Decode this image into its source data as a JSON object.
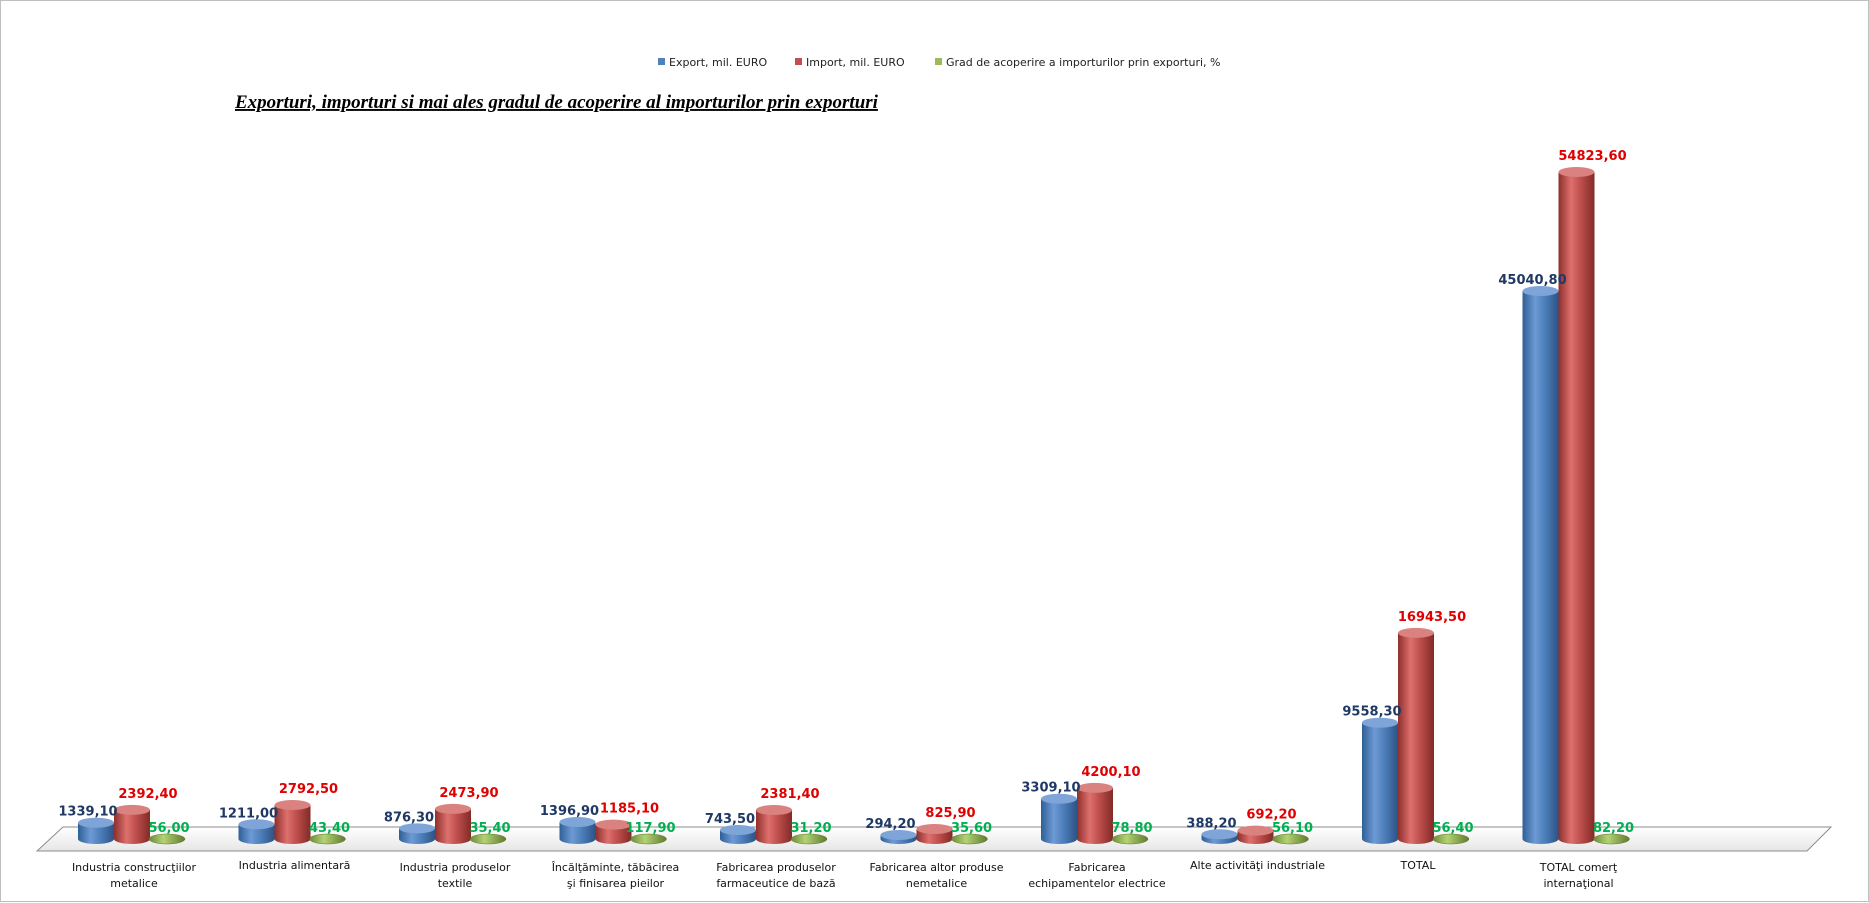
{
  "chart_data": {
    "type": "bar",
    "title": "Exporturi, importuri si mai ales gradul de acoperire al importurilor prin exporturi",
    "legend_position": "top",
    "categories": [
      [
        "Industria construcţiilor",
        "metalice"
      ],
      [
        "Industria alimentară"
      ],
      [
        "Industria produselor",
        "textile"
      ],
      [
        "Încălţăminte, tăbăcirea",
        "şi finisarea pieilor"
      ],
      [
        "Fabricarea produselor",
        "farmaceutice de bază"
      ],
      [
        "Fabricarea altor produse",
        "nemetalice"
      ],
      [
        "Fabricarea",
        "echipamentelor electrice"
      ],
      [
        "Alte activităţi industriale"
      ],
      [
        "TOTAL"
      ],
      [
        "TOTAL comerţ",
        "internaţional"
      ]
    ],
    "series": [
      {
        "name": "Export, mil. EURO",
        "color": "#4f81bd",
        "label_color": "#1f3864",
        "values": [
          1339.1,
          1211.0,
          876.3,
          1396.9,
          743.5,
          294.2,
          3309.1,
          388.2,
          9558.3,
          45040.8
        ],
        "labels": [
          "1339,10",
          "1211,00",
          "876,30",
          "1396,90",
          "743,50",
          "294,20",
          "3309,10",
          "388,20",
          "9558,30",
          "45040,80"
        ]
      },
      {
        "name": "Import, mil. EURO",
        "color": "#c0504d",
        "label_color": "#e00000",
        "values": [
          2392.4,
          2792.5,
          2473.9,
          1185.1,
          2381.4,
          825.9,
          4200.1,
          692.2,
          16943.5,
          54823.6
        ],
        "labels": [
          "2392,40",
          "2792,50",
          "2473,90",
          "1185,10",
          "2381,40",
          "825,90",
          "4200,10",
          "692,20",
          "16943,50",
          "54823,60"
        ]
      },
      {
        "name": "Grad de acoperire a importurilor prin exporturi, %",
        "color": "#9bbb59",
        "label_color": "#00b050",
        "values": [
          56.0,
          43.4,
          35.4,
          117.9,
          31.2,
          35.6,
          78.8,
          56.1,
          56.4,
          82.2
        ],
        "labels": [
          "56,00",
          "43,40",
          "35,40",
          "117,90",
          "31,20",
          "35,60",
          "78,80",
          "56,10",
          "56,40",
          "82,20"
        ]
      }
    ],
    "xlabel": "",
    "ylabel": "",
    "ylim": [
      0,
      54823.6
    ],
    "grid": false
  }
}
